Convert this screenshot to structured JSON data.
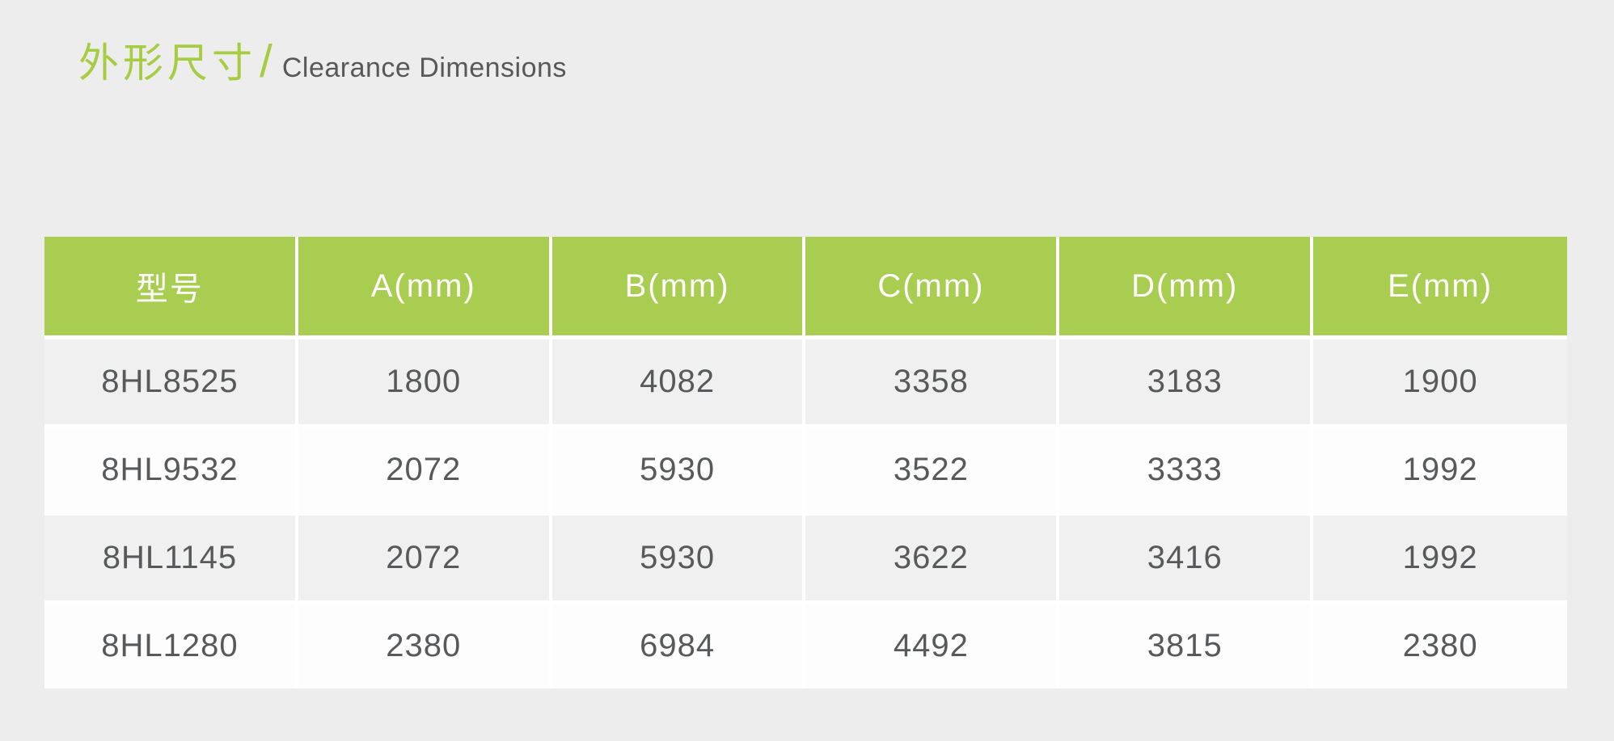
{
  "colors": {
    "page_bg": "#ededed",
    "accent_green": "#a8cd50",
    "title_green": "#a6cc41",
    "header_text": "#ffffff",
    "body_text": "#58595a",
    "row_alt_bg": "#f0f0f0",
    "row_bg": "#fdfdfd",
    "separator": "#ffffff",
    "title_en_color": "#595757"
  },
  "title": {
    "zh": "外形尺寸",
    "divider": "/",
    "en": "Clearance Dimensions"
  },
  "table": {
    "columns": [
      "型号",
      "A(mm)",
      "B(mm)",
      "C(mm)",
      "D(mm)",
      "E(mm)"
    ],
    "rows": [
      [
        "8HL8525",
        "1800",
        "4082",
        "3358",
        "3183",
        "1900"
      ],
      [
        "8HL9532",
        "2072",
        "5930",
        "3522",
        "3333",
        "1992"
      ],
      [
        "8HL1145",
        "2072",
        "5930",
        "3622",
        "3416",
        "1992"
      ],
      [
        "8HL1280",
        "2380",
        "6984",
        "4492",
        "3815",
        "2380"
      ]
    ]
  }
}
